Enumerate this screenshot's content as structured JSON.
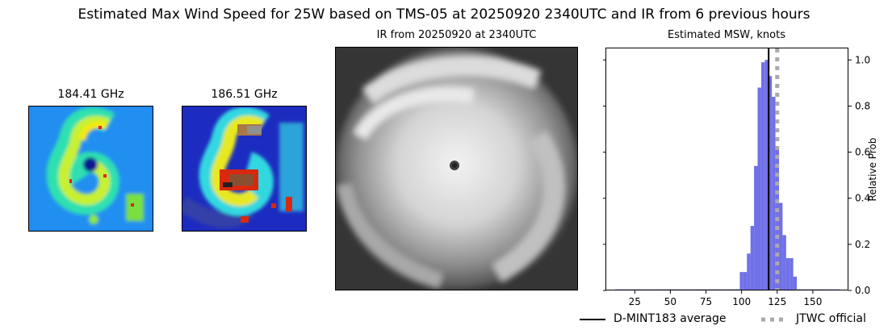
{
  "figure": {
    "title": "Estimated Max Wind Speed for 25W based on TMS-05 at 20250920 2340UTC and IR from 6 previous hours"
  },
  "panels": {
    "mw1_title": "184.41 GHz",
    "mw2_title": "186.51 GHz",
    "ir_title": "IR from 20250920 at 2340UTC"
  },
  "colors": {
    "histogram": "#7070e8",
    "average_line": "#000000",
    "jtwc_line": "#aaaaaa"
  },
  "chart_data": {
    "type": "bar",
    "title": "Estimated MSW, knots",
    "ylabel": "Relative Prob",
    "xlim": [
      5,
      175
    ],
    "ylim": [
      0,
      1.05
    ],
    "xticks": [
      25,
      50,
      75,
      100,
      125,
      150
    ],
    "yticks": [
      0.0,
      0.2,
      0.4,
      0.6,
      0.8,
      1.0
    ],
    "bin_width": 2.5,
    "bins": [
      {
        "x": 12.5,
        "y": 0.005
      },
      {
        "x": 15,
        "y": 0.005
      },
      {
        "x": 17.5,
        "y": 0.005
      },
      {
        "x": 20,
        "y": 0.005
      },
      {
        "x": 22.5,
        "y": 0.005
      },
      {
        "x": 25,
        "y": 0.005
      },
      {
        "x": 27.5,
        "y": 0.005
      },
      {
        "x": 30,
        "y": 0.005
      },
      {
        "x": 32.5,
        "y": 0.005
      },
      {
        "x": 35,
        "y": 0.005
      },
      {
        "x": 37.5,
        "y": 0.005
      },
      {
        "x": 40,
        "y": 0.005
      },
      {
        "x": 42.5,
        "y": 0.005
      },
      {
        "x": 45,
        "y": 0.005
      },
      {
        "x": 47.5,
        "y": 0.005
      },
      {
        "x": 50,
        "y": 0.005
      },
      {
        "x": 52.5,
        "y": 0.005
      },
      {
        "x": 55,
        "y": 0.005
      },
      {
        "x": 57.5,
        "y": 0.005
      },
      {
        "x": 60,
        "y": 0.005
      },
      {
        "x": 62.5,
        "y": 0.005
      },
      {
        "x": 65,
        "y": 0.005
      },
      {
        "x": 67.5,
        "y": 0.005
      },
      {
        "x": 70,
        "y": 0.005
      },
      {
        "x": 72.5,
        "y": 0.005
      },
      {
        "x": 75,
        "y": 0.005
      },
      {
        "x": 77.5,
        "y": 0.005
      },
      {
        "x": 80,
        "y": 0.005
      },
      {
        "x": 82.5,
        "y": 0.005
      },
      {
        "x": 85,
        "y": 0.005
      },
      {
        "x": 87.5,
        "y": 0.005
      },
      {
        "x": 90,
        "y": 0.005
      },
      {
        "x": 92.5,
        "y": 0.005
      },
      {
        "x": 95,
        "y": 0.005
      },
      {
        "x": 97.5,
        "y": 0.005
      },
      {
        "x": 100,
        "y": 0.08
      },
      {
        "x": 102.5,
        "y": 0.08
      },
      {
        "x": 105,
        "y": 0.16
      },
      {
        "x": 107.5,
        "y": 0.28
      },
      {
        "x": 110,
        "y": 0.54
      },
      {
        "x": 112.5,
        "y": 0.88
      },
      {
        "x": 115,
        "y": 0.99
      },
      {
        "x": 117.5,
        "y": 1.0
      },
      {
        "x": 120,
        "y": 0.93
      },
      {
        "x": 122.5,
        "y": 0.84
      },
      {
        "x": 125,
        "y": 0.62
      },
      {
        "x": 127.5,
        "y": 0.38
      },
      {
        "x": 130,
        "y": 0.24
      },
      {
        "x": 132.5,
        "y": 0.14
      },
      {
        "x": 135,
        "y": 0.14
      },
      {
        "x": 137.5,
        "y": 0.06
      },
      {
        "x": 140,
        "y": 0.005
      },
      {
        "x": 142.5,
        "y": 0.005
      },
      {
        "x": 145,
        "y": 0.005
      },
      {
        "x": 147.5,
        "y": 0.005
      },
      {
        "x": 150,
        "y": 0.005
      },
      {
        "x": 152.5,
        "y": 0.005
      },
      {
        "x": 155,
        "y": 0.005
      },
      {
        "x": 157.5,
        "y": 0.005
      },
      {
        "x": 160,
        "y": 0.005
      },
      {
        "x": 162.5,
        "y": 0.005
      },
      {
        "x": 165,
        "y": 0.005
      },
      {
        "x": 167.5,
        "y": 0.005
      }
    ],
    "average_value": 119,
    "jtwc_value": 125,
    "legend": {
      "position": "bottom",
      "entries": [
        "D-MINT183 average",
        "JTWC official"
      ]
    }
  }
}
